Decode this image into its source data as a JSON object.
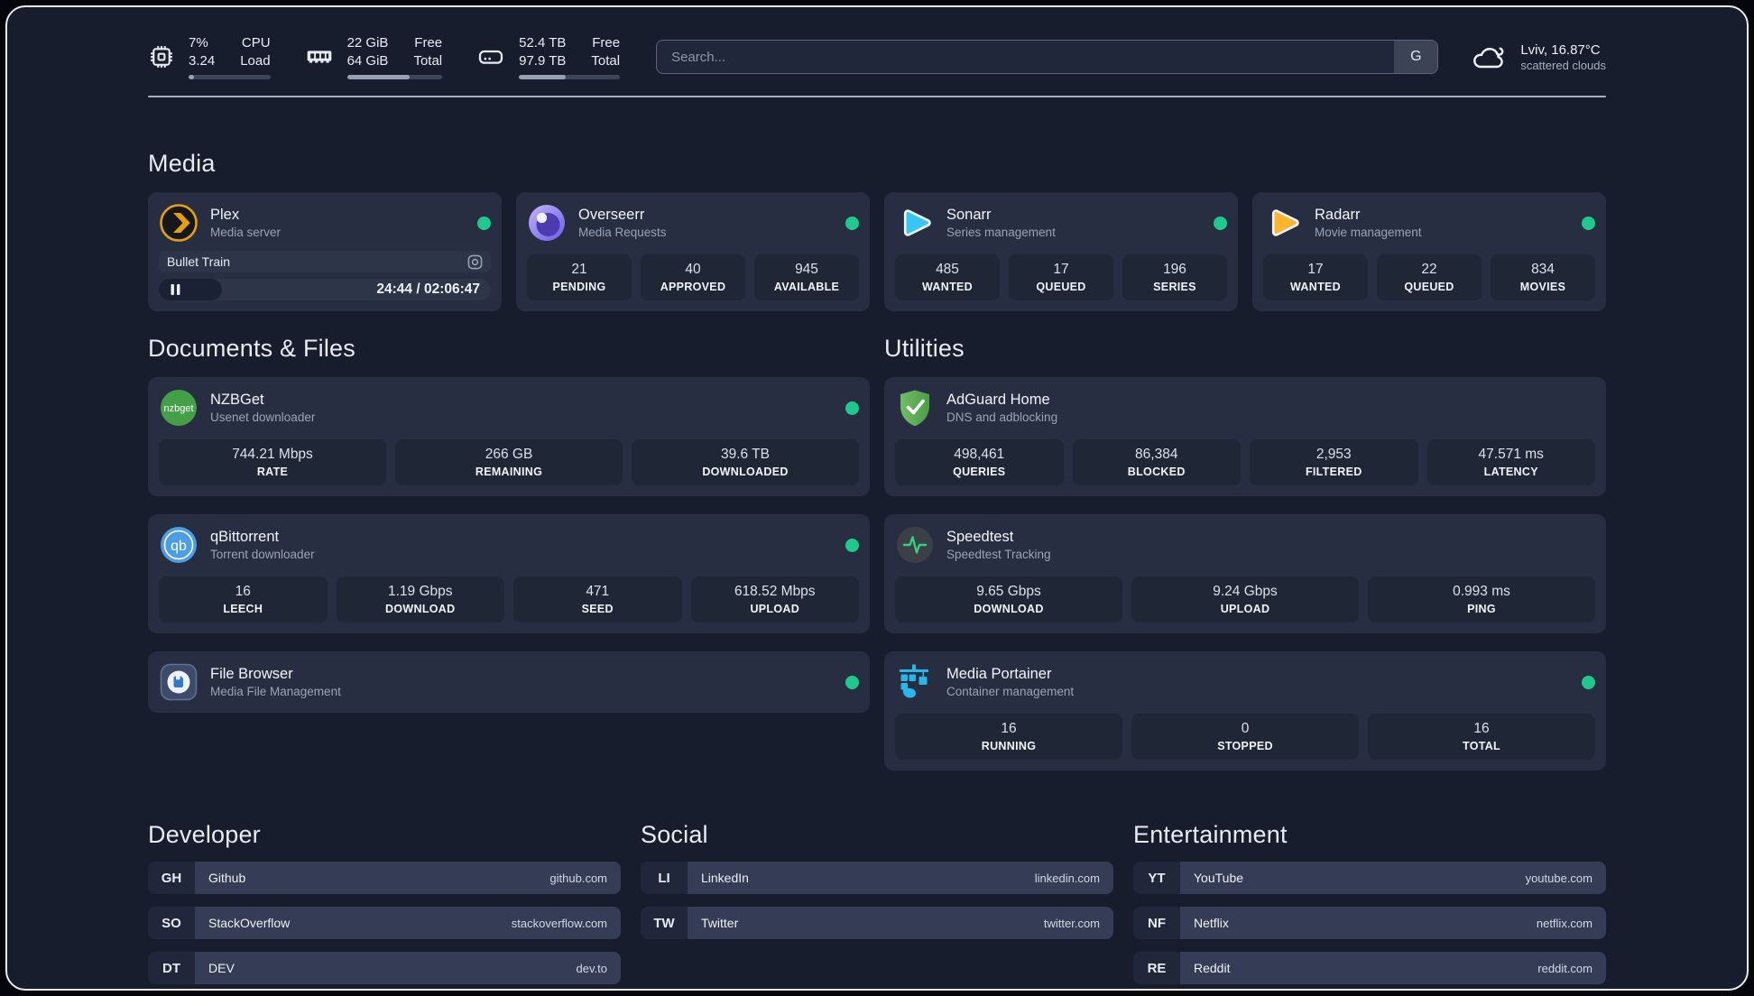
{
  "colors": {
    "page_background": "#171d2d",
    "card_background": "#272e42",
    "stat_background": "#1f2636",
    "status_online": "#1ec98b",
    "progress_track": "#3d4559",
    "progress_fill": "#98a1b3"
  },
  "topbar": {
    "cpu": {
      "icon": "cpu-chip-icon",
      "values": [
        "7%",
        "3.24"
      ],
      "labels": [
        "CPU",
        "Load"
      ],
      "progress_pct": 7
    },
    "memory": {
      "icon": "ram-icon",
      "values": [
        "22 GiB",
        "64 GiB"
      ],
      "labels": [
        "Free",
        "Total"
      ],
      "progress_pct": 66
    },
    "disk": {
      "icon": "hard-drive-icon",
      "values": [
        "52.4 TB",
        "97.9 TB"
      ],
      "labels": [
        "Free",
        "Total"
      ],
      "progress_pct": 46
    },
    "search": {
      "placeholder": "Search...",
      "button_label": "G"
    },
    "weather": {
      "icon": "cloud-icon",
      "location": "Lviv, 16.87°C",
      "condition": "scattered clouds"
    }
  },
  "sections": {
    "media": {
      "title": "Media",
      "plex": {
        "name": "Plex",
        "description": "Media server",
        "icon": "plex-icon",
        "online": true,
        "now_playing": {
          "title": "Bullet Train",
          "time": "24:44 / 02:06:47",
          "progress_pct": 19,
          "state": "paused"
        }
      },
      "overseerr": {
        "name": "Overseerr",
        "description": "Media Requests",
        "icon": "overseerr-icon",
        "online": true,
        "stats": [
          {
            "value": "21",
            "label": "PENDING"
          },
          {
            "value": "40",
            "label": "APPROVED"
          },
          {
            "value": "945",
            "label": "AVAILABLE"
          }
        ]
      },
      "sonarr": {
        "name": "Sonarr",
        "description": "Series management",
        "icon": "sonarr-icon",
        "online": true,
        "stats": [
          {
            "value": "485",
            "label": "WANTED"
          },
          {
            "value": "17",
            "label": "QUEUED"
          },
          {
            "value": "196",
            "label": "SERIES"
          }
        ]
      },
      "radarr": {
        "name": "Radarr",
        "description": "Movie management",
        "icon": "radarr-icon",
        "online": true,
        "stats": [
          {
            "value": "17",
            "label": "WANTED"
          },
          {
            "value": "22",
            "label": "QUEUED"
          },
          {
            "value": "834",
            "label": "MOVIES"
          }
        ]
      }
    },
    "documents": {
      "title": "Documents & Files",
      "nzbget": {
        "name": "NZBGet",
        "description": "Usenet downloader",
        "icon": "nzbget-icon",
        "icon_text": "nzbget",
        "online": true,
        "stats": [
          {
            "value": "744.21 Mbps",
            "label": "RATE"
          },
          {
            "value": "266 GB",
            "label": "REMAINING"
          },
          {
            "value": "39.6 TB",
            "label": "DOWNLOADED"
          }
        ]
      },
      "qbittorrent": {
        "name": "qBittorrent",
        "description": "Torrent downloader",
        "icon": "qbittorrent-icon",
        "icon_text": "qb",
        "online": true,
        "stats": [
          {
            "value": "16",
            "label": "LEECH"
          },
          {
            "value": "1.19 Gbps",
            "label": "DOWNLOAD"
          },
          {
            "value": "471",
            "label": "SEED"
          },
          {
            "value": "618.52 Mbps",
            "label": "UPLOAD"
          }
        ]
      },
      "filebrowser": {
        "name": "File Browser",
        "description": "Media File Management",
        "icon": "filebrowser-icon",
        "online": true
      }
    },
    "utilities": {
      "title": "Utilities",
      "adguard": {
        "name": "AdGuard Home",
        "description": "DNS and adblocking",
        "icon": "adguard-shield-icon",
        "stats": [
          {
            "value": "498,461",
            "label": "QUERIES"
          },
          {
            "value": "86,384",
            "label": "BLOCKED"
          },
          {
            "value": "2,953",
            "label": "FILTERED"
          },
          {
            "value": "47.571 ms",
            "label": "LATENCY"
          }
        ]
      },
      "speedtest": {
        "name": "Speedtest",
        "description": "Speedtest Tracking",
        "icon": "speedtest-pulse-icon",
        "stats": [
          {
            "value": "9.65 Gbps",
            "label": "DOWNLOAD"
          },
          {
            "value": "9.24 Gbps",
            "label": "UPLOAD"
          },
          {
            "value": "0.993 ms",
            "label": "PING"
          }
        ]
      },
      "portainer": {
        "name": "Media Portainer",
        "description": "Container management",
        "icon": "portainer-icon",
        "online": true,
        "stats": [
          {
            "value": "16",
            "label": "RUNNING"
          },
          {
            "value": "0",
            "label": "STOPPED"
          },
          {
            "value": "16",
            "label": "TOTAL"
          }
        ]
      }
    },
    "developer": {
      "title": "Developer",
      "bookmarks": [
        {
          "abbr": "GH",
          "name": "Github",
          "url": "github.com"
        },
        {
          "abbr": "SO",
          "name": "StackOverflow",
          "url": "stackoverflow.com"
        },
        {
          "abbr": "DT",
          "name": "DEV",
          "url": "dev.to"
        }
      ]
    },
    "social": {
      "title": "Social",
      "bookmarks": [
        {
          "abbr": "LI",
          "name": "LinkedIn",
          "url": "linkedin.com"
        },
        {
          "abbr": "TW",
          "name": "Twitter",
          "url": "twitter.com"
        }
      ]
    },
    "entertainment": {
      "title": "Entertainment",
      "bookmarks": [
        {
          "abbr": "YT",
          "name": "YouTube",
          "url": "youtube.com"
        },
        {
          "abbr": "NF",
          "name": "Netflix",
          "url": "netflix.com"
        },
        {
          "abbr": "RE",
          "name": "Reddit",
          "url": "reddit.com"
        }
      ]
    }
  }
}
